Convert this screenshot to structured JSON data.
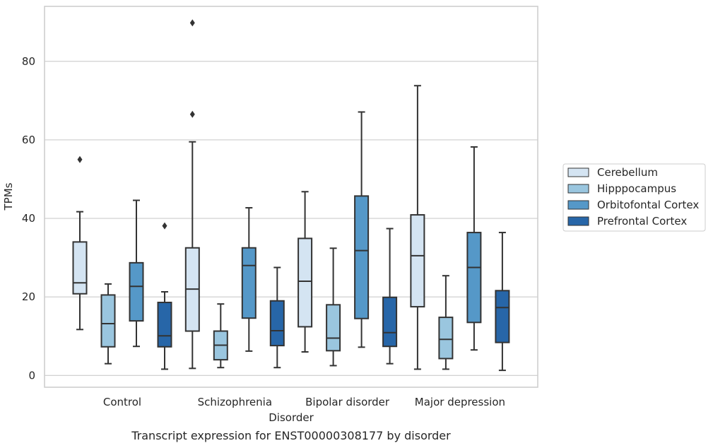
{
  "chart_data": {
    "type": "boxplot",
    "title": "",
    "caption": "Transcript expression for ENST00000308177 by disorder",
    "xlabel": "Disorder",
    "ylabel": "TPMs",
    "ylim": [
      -3,
      94
    ],
    "yticks": [
      0,
      20,
      40,
      60,
      80
    ],
    "grid": "horizontal",
    "legend_position": "right",
    "categories": [
      "Control",
      "Schizophrenia",
      "Bipolar disorder",
      "Major depression"
    ],
    "series": [
      {
        "name": "Cerebellum",
        "color": "#d4e4f2",
        "boxes": [
          {
            "whisker_low": 11.7,
            "q1": 20.8,
            "median": 23.6,
            "q3": 34.0,
            "whisker_high": 41.7,
            "outliers": [
              55.0
            ]
          },
          {
            "whisker_low": 1.8,
            "q1": 11.3,
            "median": 22.0,
            "q3": 32.5,
            "whisker_high": 59.5,
            "outliers": [
              66.5,
              89.8
            ]
          },
          {
            "whisker_low": 6.0,
            "q1": 12.4,
            "median": 24.0,
            "q3": 34.9,
            "whisker_high": 46.8,
            "outliers": []
          },
          {
            "whisker_low": 1.6,
            "q1": 17.5,
            "median": 30.5,
            "q3": 40.9,
            "whisker_high": 73.8,
            "outliers": []
          }
        ]
      },
      {
        "name": "Hipppocampus",
        "color": "#9ac6df",
        "boxes": [
          {
            "whisker_low": 3.0,
            "q1": 7.3,
            "median": 13.2,
            "q3": 20.5,
            "whisker_high": 23.3,
            "outliers": []
          },
          {
            "whisker_low": 2.0,
            "q1": 4.0,
            "median": 7.7,
            "q3": 11.3,
            "whisker_high": 18.2,
            "outliers": []
          },
          {
            "whisker_low": 2.5,
            "q1": 6.3,
            "median": 9.5,
            "q3": 18.0,
            "whisker_high": 32.4,
            "outliers": []
          },
          {
            "whisker_low": 1.6,
            "q1": 4.3,
            "median": 9.2,
            "q3": 14.8,
            "whisker_high": 25.4,
            "outliers": []
          }
        ]
      },
      {
        "name": "Orbitofontal Cortex",
        "color": "#5598c8",
        "boxes": [
          {
            "whisker_low": 7.4,
            "q1": 13.9,
            "median": 22.7,
            "q3": 28.7,
            "whisker_high": 44.6,
            "outliers": []
          },
          {
            "whisker_low": 6.2,
            "q1": 14.6,
            "median": 28.0,
            "q3": 32.5,
            "whisker_high": 42.7,
            "outliers": []
          },
          {
            "whisker_low": 7.2,
            "q1": 14.5,
            "median": 31.8,
            "q3": 45.7,
            "whisker_high": 67.1,
            "outliers": []
          },
          {
            "whisker_low": 6.5,
            "q1": 13.5,
            "median": 27.5,
            "q3": 36.4,
            "whisker_high": 58.2,
            "outliers": []
          }
        ]
      },
      {
        "name": "Prefrontal Cortex",
        "color": "#2766a8",
        "boxes": [
          {
            "whisker_low": 1.6,
            "q1": 7.3,
            "median": 10.1,
            "q3": 18.6,
            "whisker_high": 21.3,
            "outliers": [
              38.1
            ]
          },
          {
            "whisker_low": 2.0,
            "q1": 7.6,
            "median": 11.4,
            "q3": 19.0,
            "whisker_high": 27.5,
            "outliers": []
          },
          {
            "whisker_low": 3.0,
            "q1": 7.4,
            "median": 10.9,
            "q3": 19.9,
            "whisker_high": 37.4,
            "outliers": []
          },
          {
            "whisker_low": 1.3,
            "q1": 8.4,
            "median": 17.3,
            "q3": 21.6,
            "whisker_high": 36.4,
            "outliers": []
          }
        ]
      }
    ]
  }
}
